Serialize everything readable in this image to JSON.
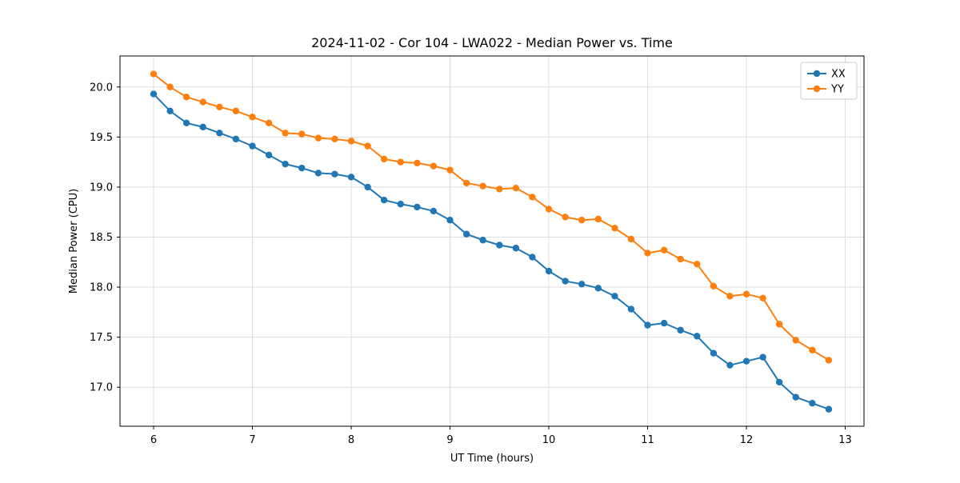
{
  "chart_data": {
    "type": "line",
    "title": "2024-11-02 - Cor 104 - LWA022 - Median Power vs. Time",
    "xlabel": "UT Time (hours)",
    "ylabel": "Median Power (CPU)",
    "xlim": [
      5.66,
      13.19
    ],
    "ylim": [
      16.61,
      20.31
    ],
    "xticks": [
      6,
      7,
      8,
      9,
      10,
      11,
      12,
      13
    ],
    "yticks": [
      17.0,
      17.5,
      18.0,
      18.5,
      19.0,
      19.5,
      20.0
    ],
    "grid": true,
    "legend_position": "upper right",
    "x": [
      6.0,
      6.167,
      6.333,
      6.5,
      6.667,
      6.833,
      7.0,
      7.167,
      7.333,
      7.5,
      7.667,
      7.833,
      8.0,
      8.167,
      8.333,
      8.5,
      8.667,
      8.833,
      9.0,
      9.167,
      9.333,
      9.5,
      9.667,
      9.833,
      10.0,
      10.167,
      10.333,
      10.5,
      10.667,
      10.833,
      11.0,
      11.167,
      11.333,
      11.5,
      11.667,
      11.833,
      12.0,
      12.167,
      12.333,
      12.5,
      12.667,
      12.833
    ],
    "series": [
      {
        "name": "XX",
        "color": "#1f77b4",
        "values": [
          19.93,
          19.76,
          19.64,
          19.6,
          19.54,
          19.48,
          19.41,
          19.32,
          19.23,
          19.19,
          19.14,
          19.13,
          19.1,
          19.0,
          18.87,
          18.83,
          18.8,
          18.76,
          18.67,
          18.53,
          18.47,
          18.42,
          18.39,
          18.3,
          18.16,
          18.06,
          18.03,
          17.99,
          17.91,
          17.78,
          17.62,
          17.64,
          17.57,
          17.51,
          17.34,
          17.22,
          17.26,
          17.3,
          17.05,
          16.9,
          16.84,
          16.78
        ]
      },
      {
        "name": "YY",
        "color": "#ff7f0e",
        "values": [
          20.13,
          20.0,
          19.9,
          19.85,
          19.8,
          19.76,
          19.7,
          19.64,
          19.54,
          19.53,
          19.49,
          19.48,
          19.46,
          19.41,
          19.28,
          19.25,
          19.24,
          19.21,
          19.17,
          19.04,
          19.01,
          18.98,
          18.99,
          18.9,
          18.78,
          18.7,
          18.67,
          18.68,
          18.59,
          18.48,
          18.34,
          18.37,
          18.28,
          18.23,
          18.01,
          17.91,
          17.93,
          17.89,
          17.63,
          17.47,
          17.37,
          17.27
        ]
      }
    ]
  }
}
